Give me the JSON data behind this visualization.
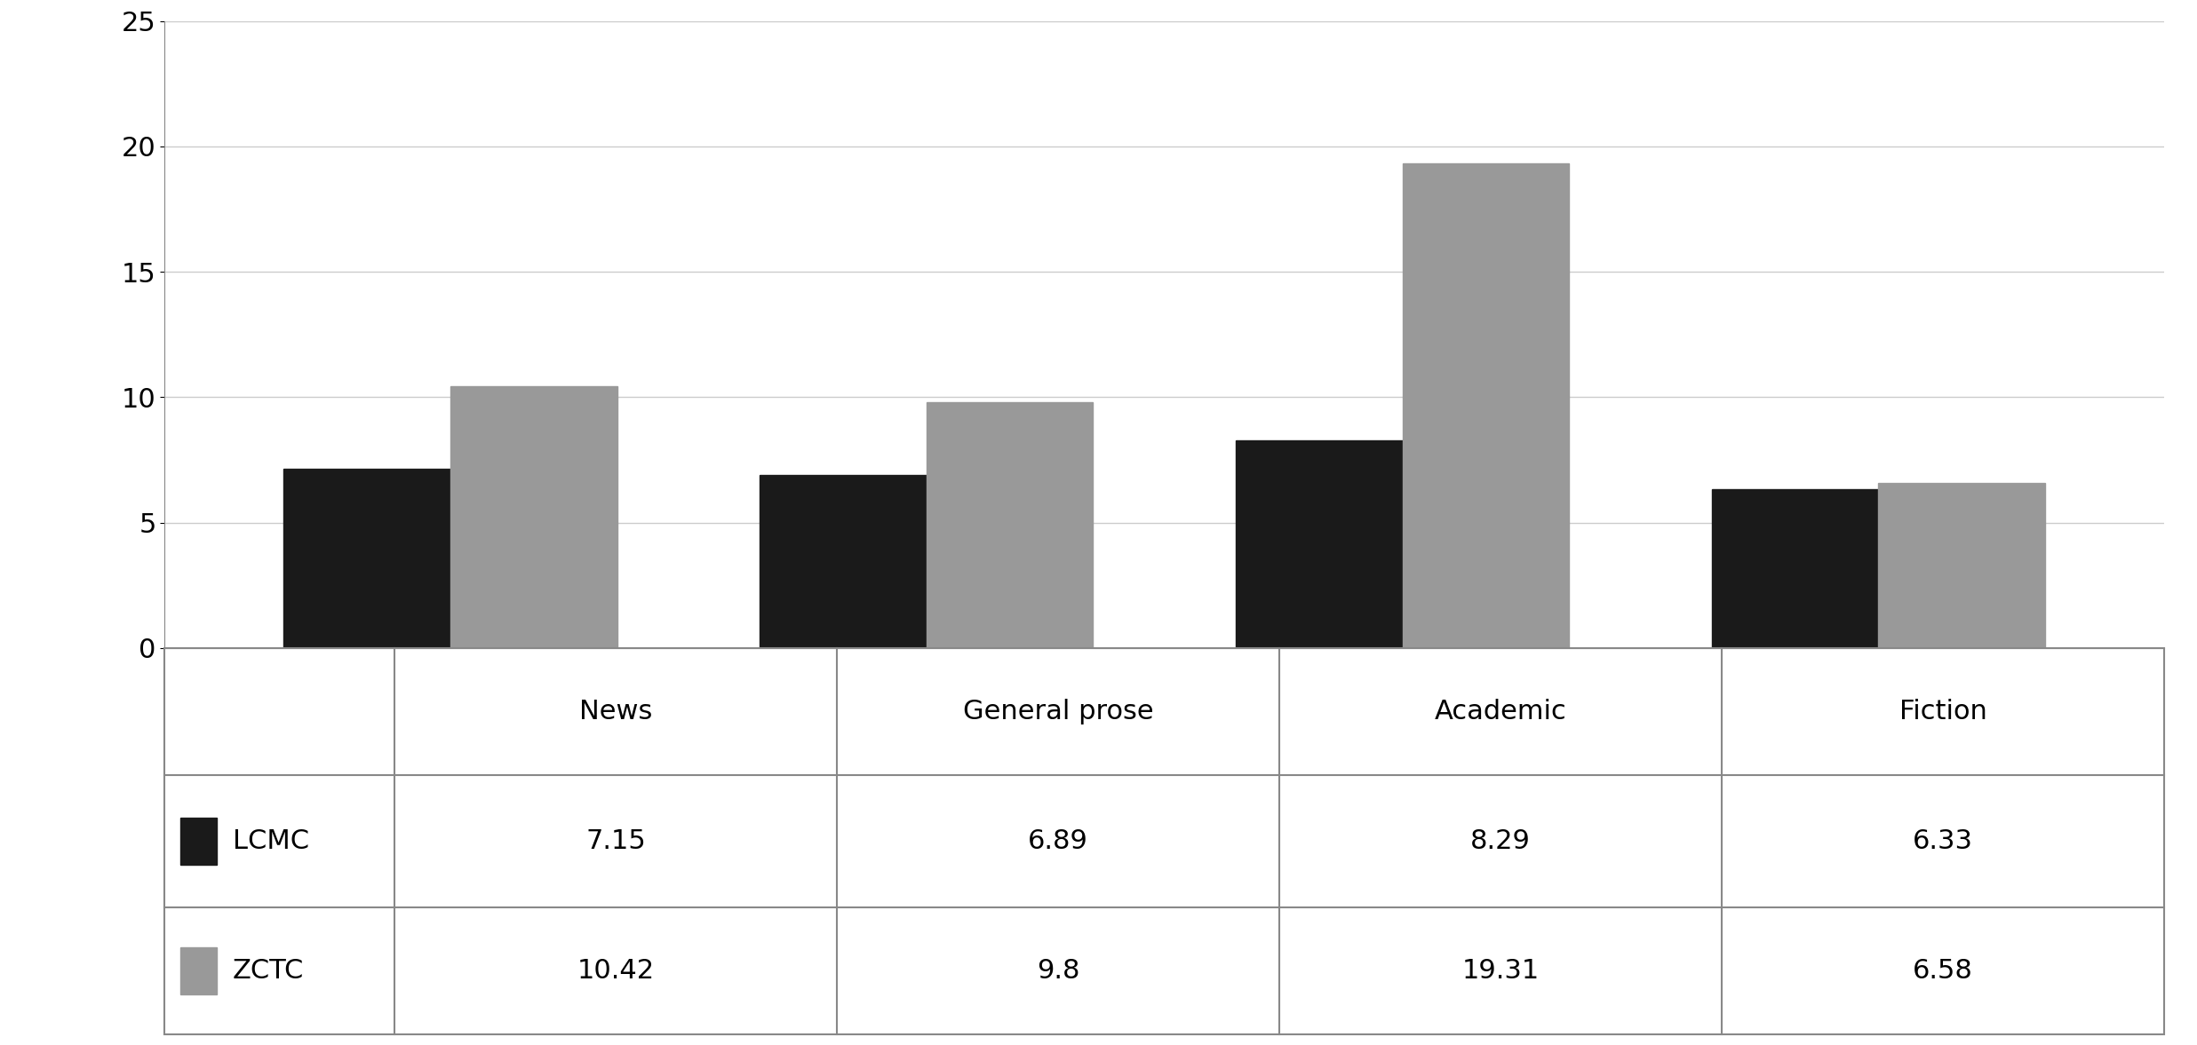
{
  "categories": [
    "News",
    "General prose",
    "Academic",
    "Fiction"
  ],
  "series": [
    {
      "label": "LCMC",
      "values": [
        7.15,
        6.89,
        8.29,
        6.33
      ],
      "color": "#1a1a1a"
    },
    {
      "label": "ZCTC",
      "values": [
        10.42,
        9.8,
        19.31,
        6.58
      ],
      "color": "#999999"
    }
  ],
  "ylim": [
    0,
    25
  ],
  "yticks": [
    0,
    5,
    10,
    15,
    20,
    25
  ],
  "bar_width": 0.35,
  "background_color": "#ffffff",
  "table_lcmc": [
    "7.15",
    "6.89",
    "8.29",
    "6.33"
  ],
  "table_zctc": [
    "10.42",
    "9.8",
    "19.31",
    "6.58"
  ],
  "table_lcmc_label": "LCMC",
  "table_zctc_label": "ZCTC",
  "grid_color": "#cccccc",
  "tick_fontsize": 22,
  "table_fontsize": 22,
  "border_color": "#888888",
  "border_lw": 1.5
}
